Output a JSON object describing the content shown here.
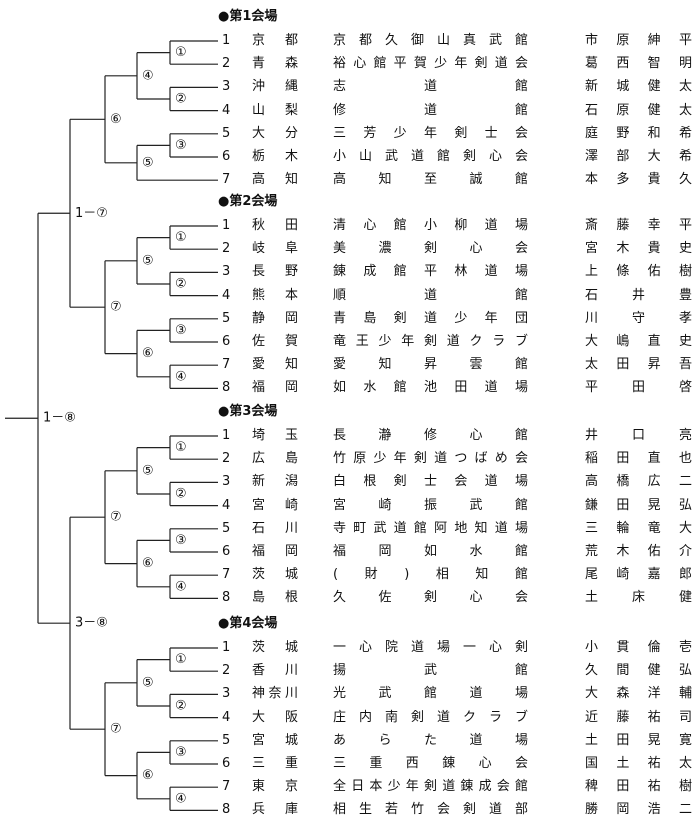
{
  "venues": [
    {
      "title": "●第1会場",
      "labels": [
        "①",
        "②",
        "③",
        "④",
        "⑤",
        "⑥"
      ],
      "entries": [
        {
          "no": 1,
          "pref": "京都",
          "dojo": "京都久御山真武館",
          "name": "市原紳平"
        },
        {
          "no": 2,
          "pref": "青森",
          "dojo": "裕心館平賀少年剣道会",
          "name": "葛西智明"
        },
        {
          "no": 3,
          "pref": "沖縄",
          "dojo": "志道館",
          "name": "新城健太"
        },
        {
          "no": 4,
          "pref": "山梨",
          "dojo": "修道館",
          "name": "石原健太"
        },
        {
          "no": 5,
          "pref": "大分",
          "dojo": "三芳少年剣士会",
          "name": "庭野和希"
        },
        {
          "no": 6,
          "pref": "栃木",
          "dojo": "小山武道館剣心会",
          "name": "澤部大希"
        },
        {
          "no": 7,
          "pref": "高知",
          "dojo": "高知至誠館",
          "name": "本多貴久"
        }
      ]
    },
    {
      "title": "●第2会場",
      "labels": [
        "①",
        "②",
        "③",
        "④",
        "⑤",
        "⑥",
        "⑦"
      ],
      "entries": [
        {
          "no": 1,
          "pref": "秋田",
          "dojo": "清心館小柳道場",
          "name": "斎藤幸平"
        },
        {
          "no": 2,
          "pref": "岐阜",
          "dojo": "美濃剣心会",
          "name": "宮木貴史"
        },
        {
          "no": 3,
          "pref": "長野",
          "dojo": "錬成館平林道場",
          "name": "上條佑樹"
        },
        {
          "no": 4,
          "pref": "熊本",
          "dojo": "順道館",
          "name": "石井豊"
        },
        {
          "no": 5,
          "pref": "静岡",
          "dojo": "青島剣道少年団",
          "name": "川守孝"
        },
        {
          "no": 6,
          "pref": "佐賀",
          "dojo": "竜王少年剣道クラブ",
          "name": "大嶋直史"
        },
        {
          "no": 7,
          "pref": "愛知",
          "dojo": "愛知昇雲館",
          "name": "太田昇吾"
        },
        {
          "no": 8,
          "pref": "福岡",
          "dojo": "如水館池田道場",
          "name": "平田啓"
        }
      ]
    },
    {
      "title": "●第3会場",
      "labels": [
        "①",
        "②",
        "③",
        "④",
        "⑤",
        "⑥",
        "⑦"
      ],
      "entries": [
        {
          "no": 1,
          "pref": "埼玉",
          "dojo": "長瀞修心館",
          "name": "井口亮"
        },
        {
          "no": 2,
          "pref": "広島",
          "dojo": "竹原少年剣道つばめ会",
          "name": "稲田直也"
        },
        {
          "no": 3,
          "pref": "新潟",
          "dojo": "白根剣士会道場",
          "name": "高橋広二"
        },
        {
          "no": 4,
          "pref": "宮崎",
          "dojo": "宮崎振武館",
          "name": "鎌田晃弘"
        },
        {
          "no": 5,
          "pref": "石川",
          "dojo": "寺町武道館阿地知道場",
          "name": "三輪竜大"
        },
        {
          "no": 6,
          "pref": "福岡",
          "dojo": "福岡如水館",
          "name": "荒木佑介"
        },
        {
          "no": 7,
          "pref": "茨城",
          "dojo": "(財)相知館",
          "name": "尾崎嘉郎"
        },
        {
          "no": 8,
          "pref": "島根",
          "dojo": "久佐剣心会",
          "name": "土床健"
        }
      ]
    },
    {
      "title": "●第4会場",
      "labels": [
        "①",
        "②",
        "③",
        "④",
        "⑤",
        "⑥",
        "⑦"
      ],
      "entries": [
        {
          "no": 1,
          "pref": "茨城",
          "dojo": "一心院道場一心剣",
          "name": "小貫倫壱"
        },
        {
          "no": 2,
          "pref": "香川",
          "dojo": "揚武館",
          "name": "久間健弘"
        },
        {
          "no": 3,
          "pref": "神奈川",
          "dojo": "光武館道場",
          "name": "大森洋輔"
        },
        {
          "no": 4,
          "pref": "大阪",
          "dojo": "庄内南剣道クラブ",
          "name": "近藤祐司"
        },
        {
          "no": 5,
          "pref": "宮城",
          "dojo": "あらた道場",
          "name": "土田晃寛"
        },
        {
          "no": 6,
          "pref": "三重",
          "dojo": "三重西錬心会",
          "name": "国土祐太"
        },
        {
          "no": 7,
          "pref": "東京",
          "dojo": "全日本少年剣道錬成会館",
          "name": "稗田祐樹"
        },
        {
          "no": 8,
          "pref": "兵庫",
          "dojo": "相生若竹会剣道部",
          "name": "勝岡浩二"
        }
      ]
    }
  ],
  "finals": [
    "1－⑦",
    "3－⑧",
    "1－⑧"
  ]
}
